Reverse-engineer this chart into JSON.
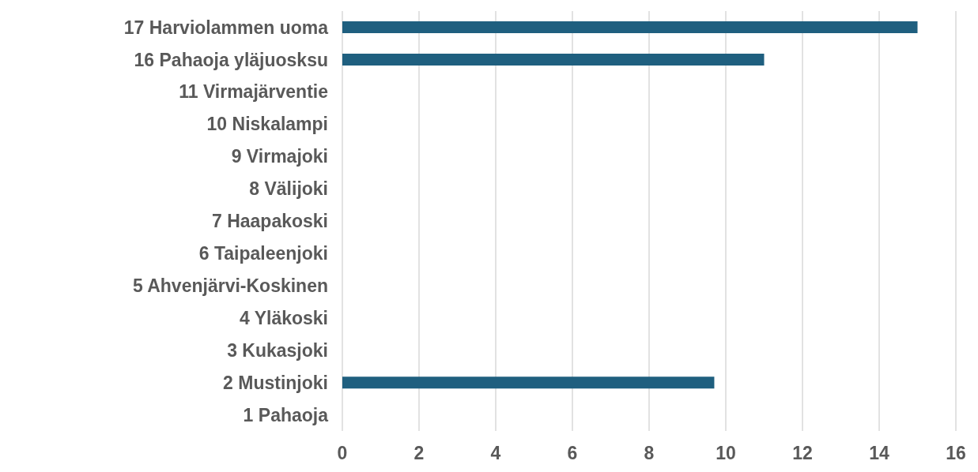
{
  "chart_data": {
    "type": "bar",
    "orientation": "horizontal",
    "categories": [
      "17 Harviolammen uoma",
      "16 Pahaoja yläjuosksu",
      "11 Virmajärventie",
      "10 Niskalampi",
      "9 Virmajoki",
      "8 Välijoki",
      "7 Haapakoski",
      "6 Taipaleenjoki",
      "5 Ahvenjärvi-Koskinen",
      "4 Yläkoski",
      "3 Kukasjoki",
      "2 Mustinjoki",
      "1 Pahaoja"
    ],
    "values": [
      15.0,
      11.0,
      0,
      0,
      0,
      0,
      0,
      0,
      0,
      0,
      0,
      9.7,
      0
    ],
    "color": "#1f5f7f",
    "xlim": [
      0,
      16
    ],
    "xticks": [
      0,
      2,
      4,
      6,
      8,
      10,
      12,
      14,
      16
    ],
    "grid": "x"
  }
}
